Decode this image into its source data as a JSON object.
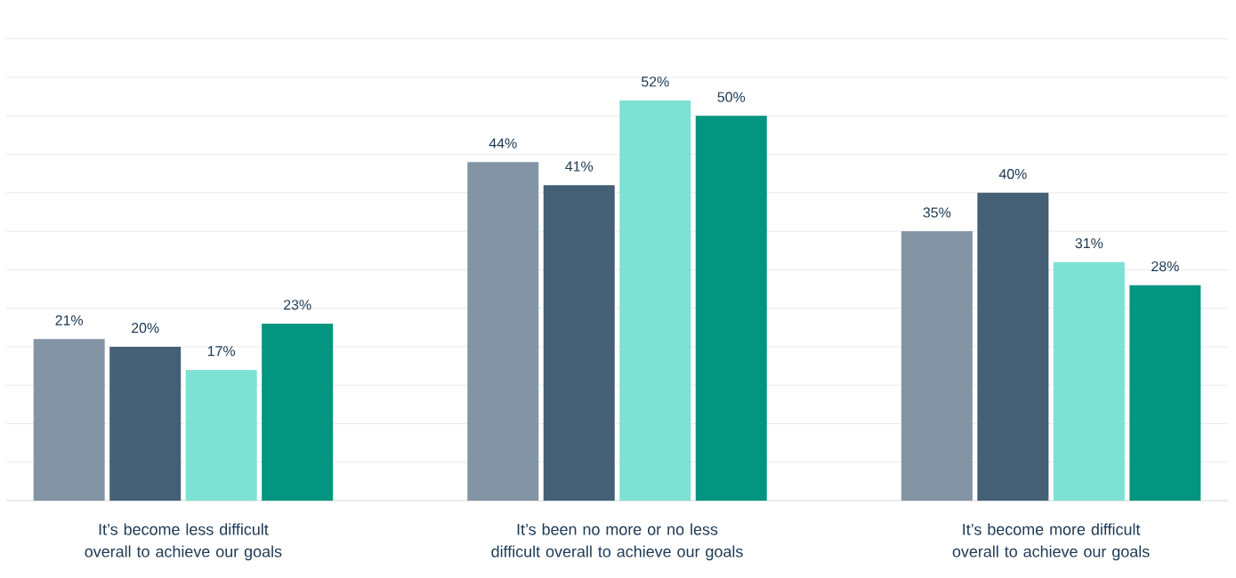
{
  "chart_data": {
    "type": "bar",
    "categories": [
      "It’s become less difficult overall to achieve our goals",
      "It’s been no more or no less difficult overall to achieve our goals",
      "It’s become more difficult overall to achieve our goals"
    ],
    "series": [
      {
        "color": "#8395a5",
        "values": [
          21,
          44,
          35
        ],
        "value_labels": [
          "21%",
          "44%",
          "35%"
        ]
      },
      {
        "color": "#445f76",
        "values": [
          20,
          41,
          40
        ],
        "value_labels": [
          "20%",
          "41%",
          "40%"
        ]
      },
      {
        "color": "#7de1d4",
        "values": [
          17,
          52,
          31
        ],
        "value_labels": [
          "17%",
          "52%",
          "31%"
        ]
      },
      {
        "color": "#03957f",
        "values": [
          23,
          50,
          28
        ],
        "value_labels": [
          "23%",
          "50%",
          "28%"
        ]
      }
    ],
    "grid": "y",
    "tick_labels": "x"
  }
}
